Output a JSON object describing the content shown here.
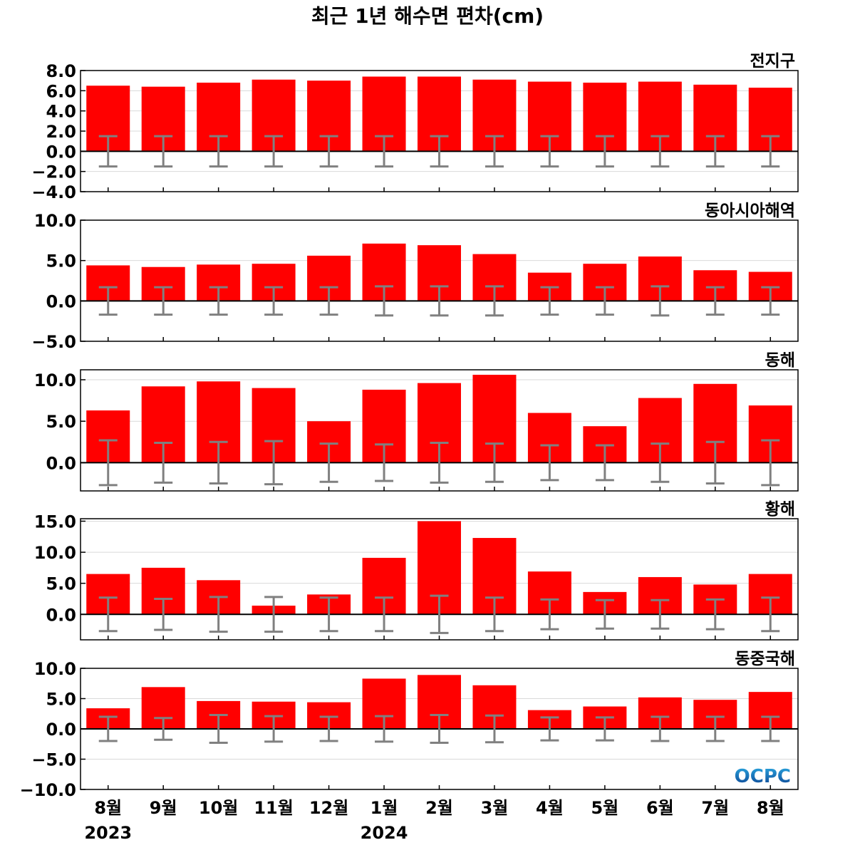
{
  "title": "최근 1년 해수면 편차(cm)",
  "logo": {
    "text": "OCPC",
    "colors": {
      "top": "#2aa7e0",
      "bottom": "#0b3f8f"
    }
  },
  "colors": {
    "bar": "#ff0000",
    "error_bar": "#808080",
    "zero_line": "#000000",
    "grid": "#d9d9d9"
  },
  "x_labels": [
    "8월",
    "9월",
    "10월",
    "11월",
    "12월",
    "1월",
    "2월",
    "3월",
    "4월",
    "5월",
    "6월",
    "7월",
    "8월"
  ],
  "year_labels": [
    {
      "text": "2023",
      "index": 0
    },
    {
      "text": "2024",
      "index": 5
    }
  ],
  "chart_data": [
    {
      "type": "bar",
      "name": "전지구",
      "categories": [
        "8월",
        "9월",
        "10월",
        "11월",
        "12월",
        "1월",
        "2월",
        "3월",
        "4월",
        "5월",
        "6월",
        "7월",
        "8월"
      ],
      "values": [
        6.5,
        6.4,
        6.8,
        7.1,
        7.0,
        7.4,
        7.4,
        7.1,
        6.9,
        6.8,
        6.9,
        6.6,
        6.3
      ],
      "error": [
        1.5,
        1.5,
        1.5,
        1.5,
        1.5,
        1.5,
        1.5,
        1.5,
        1.5,
        1.5,
        1.5,
        1.5,
        1.5
      ],
      "ylim": [
        -4.0,
        8.0
      ],
      "yticks": [
        -4.0,
        -2.0,
        0.0,
        2.0,
        4.0,
        6.0,
        8.0
      ],
      "ytick_labels": [
        "−4.0",
        "−2.0",
        "0.0",
        "2.0",
        "4.0",
        "6.0",
        "8.0"
      ]
    },
    {
      "type": "bar",
      "name": "동아시아해역",
      "categories": [
        "8월",
        "9월",
        "10월",
        "11월",
        "12월",
        "1월",
        "2월",
        "3월",
        "4월",
        "5월",
        "6월",
        "7월",
        "8월"
      ],
      "values": [
        4.4,
        4.2,
        4.5,
        4.6,
        5.6,
        7.1,
        6.9,
        5.8,
        3.5,
        4.6,
        5.5,
        3.8,
        3.6
      ],
      "error": [
        1.7,
        1.7,
        1.7,
        1.7,
        1.7,
        1.8,
        1.8,
        1.8,
        1.7,
        1.7,
        1.8,
        1.7,
        1.7
      ],
      "ylim": [
        -5.0,
        10.0
      ],
      "yticks": [
        -5.0,
        0.0,
        5.0,
        10.0
      ],
      "ytick_labels": [
        "−5.0",
        "0.0",
        "5.0",
        "10.0"
      ]
    },
    {
      "type": "bar",
      "name": "동해",
      "categories": [
        "8월",
        "9월",
        "10월",
        "11월",
        "12월",
        "1월",
        "2월",
        "3월",
        "4월",
        "5월",
        "6월",
        "7월",
        "8월"
      ],
      "values": [
        6.3,
        9.2,
        9.8,
        9.0,
        5.0,
        8.8,
        9.6,
        10.6,
        6.0,
        4.4,
        7.8,
        9.5,
        6.9
      ],
      "error": [
        2.7,
        2.4,
        2.5,
        2.6,
        2.3,
        2.2,
        2.4,
        2.3,
        2.1,
        2.1,
        2.3,
        2.5,
        2.7
      ],
      "ylim": [
        -3.4,
        11.2
      ],
      "yticks": [
        0.0,
        5.0,
        10.0
      ],
      "ytick_labels": [
        "0.0",
        "5.0",
        "10.0"
      ]
    },
    {
      "type": "bar",
      "name": "황해",
      "categories": [
        "8월",
        "9월",
        "10월",
        "11월",
        "12월",
        "1월",
        "2월",
        "3월",
        "4월",
        "5월",
        "6월",
        "7월",
        "8월"
      ],
      "values": [
        6.5,
        7.5,
        5.5,
        1.4,
        3.2,
        9.1,
        15.0,
        12.3,
        6.9,
        3.6,
        6.0,
        4.8,
        6.5
      ],
      "error": [
        2.7,
        2.5,
        2.8,
        2.8,
        2.7,
        2.7,
        3.0,
        2.7,
        2.4,
        2.3,
        2.3,
        2.4,
        2.7
      ],
      "ylim": [
        -4.1,
        15.4
      ],
      "yticks": [
        0.0,
        5.0,
        10.0,
        15.0
      ],
      "ytick_labels": [
        "0.0",
        "5.0",
        "10.0",
        "15.0"
      ]
    },
    {
      "type": "bar",
      "name": "동중국해",
      "categories": [
        "8월",
        "9월",
        "10월",
        "11월",
        "12월",
        "1월",
        "2월",
        "3월",
        "4월",
        "5월",
        "6월",
        "7월",
        "8월"
      ],
      "values": [
        3.4,
        6.9,
        4.6,
        4.5,
        4.4,
        8.3,
        8.9,
        7.2,
        3.1,
        3.7,
        5.2,
        4.8,
        6.1
      ],
      "error": [
        2.0,
        1.8,
        2.3,
        2.1,
        2.0,
        2.1,
        2.3,
        2.2,
        1.9,
        1.9,
        2.0,
        2.0,
        2.0
      ],
      "ylim": [
        -10.0,
        10.0
      ],
      "yticks": [
        -10.0,
        -5.0,
        0.0,
        5.0,
        10.0
      ],
      "ytick_labels": [
        "−10.0",
        "−5.0",
        "0.0",
        "5.0",
        "10.0"
      ]
    }
  ]
}
